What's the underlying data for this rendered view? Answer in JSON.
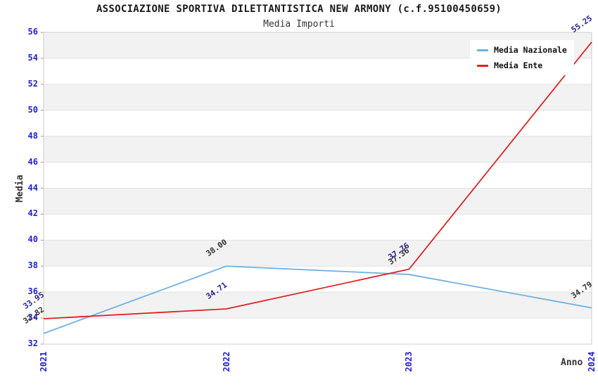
{
  "colors": {
    "tick_label": "#2121cc",
    "band_gray": "#f2f2f2",
    "band_white": "#ffffff",
    "grid": "#e2e2e2",
    "plot_border": "#cccccc",
    "tick_mark": "#999999",
    "title_text": "#1a1a1a",
    "axis_title_text": "#333333"
  },
  "chart_data": {
    "type": "line",
    "title": "ASSOCIAZIONE SPORTIVA DILETTANTISTICA NEW ARMONY (c.f.95100450659)",
    "subtitle": "Media Importi",
    "xlabel": "Anno",
    "ylabel": "Media",
    "x_labels": [
      "2021",
      "2022",
      "2023",
      "2024"
    ],
    "ylim": [
      32,
      56
    ],
    "ytick_step": 2,
    "yticks": [
      32,
      34,
      36,
      38,
      40,
      42,
      44,
      46,
      48,
      50,
      52,
      54,
      56
    ],
    "grid": "horizontal",
    "plot_bands": "alternating gray/white per 2 units, gray at top",
    "legend_position": "top-right",
    "legend": [
      "Media Nazionale",
      "Media Ente"
    ],
    "series": [
      {
        "name": "Media Nazionale",
        "color": "#6fb0e0",
        "label_color": "#333333",
        "values": [
          32.82,
          38.0,
          37.36,
          34.79
        ],
        "point_labels": [
          "32.82",
          "38.00",
          "37.36",
          "34.79"
        ]
      },
      {
        "name": "Media Ente",
        "color": "#e02222",
        "label_color": "#222299",
        "values": [
          33.95,
          34.71,
          37.76,
          55.25
        ],
        "point_labels": [
          "33.95",
          "34.71",
          "37.76",
          "55.25"
        ]
      }
    ]
  }
}
